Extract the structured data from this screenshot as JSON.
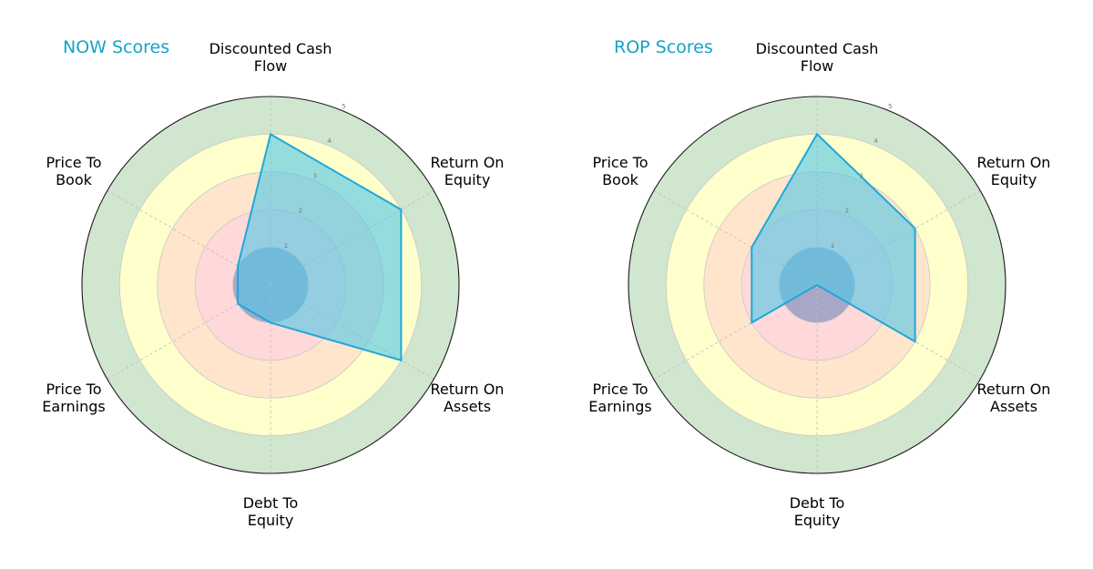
{
  "chart_data": [
    {
      "type": "radar",
      "title": "NOW Scores",
      "axes": [
        "Discounted Cash\nFlow",
        "Return On\nEquity",
        "Return On\nAssets",
        "Debt To\nEquity",
        "Price To\nEarnings",
        "Price To\nBook"
      ],
      "rlim": [
        0,
        5
      ],
      "rticks": [
        "1",
        "2",
        "3",
        "4",
        "5"
      ],
      "bands": [
        {
          "from": 0,
          "to": 1,
          "color": "#a7a7c7"
        },
        {
          "from": 1,
          "to": 2,
          "color": "#ffd9d9"
        },
        {
          "from": 2,
          "to": 3,
          "color": "#ffe5cc"
        },
        {
          "from": 3,
          "to": 4,
          "color": "#ffffcc"
        },
        {
          "from": 4,
          "to": 5,
          "color": "#d0e6cf"
        }
      ],
      "series": [
        {
          "values": [
            4,
            4,
            4,
            1,
            1,
            1
          ],
          "color": "#1ea7dc",
          "fill": "#4fc6e6"
        }
      ]
    },
    {
      "type": "radar",
      "title": "ROP Scores",
      "axes": [
        "Discounted Cash\nFlow",
        "Return On\nEquity",
        "Return On\nAssets",
        "Debt To\nEquity",
        "Price To\nEarnings",
        "Price To\nBook"
      ],
      "rlim": [
        0,
        5
      ],
      "rticks": [
        "1",
        "2",
        "3",
        "4",
        "5"
      ],
      "bands": [
        {
          "from": 0,
          "to": 1,
          "color": "#a7a7c7"
        },
        {
          "from": 1,
          "to": 2,
          "color": "#ffd9d9"
        },
        {
          "from": 2,
          "to": 3,
          "color": "#ffe5cc"
        },
        {
          "from": 3,
          "to": 4,
          "color": "#ffffcc"
        },
        {
          "from": 4,
          "to": 5,
          "color": "#d0e6cf"
        }
      ],
      "series": [
        {
          "values": [
            4,
            3,
            3,
            0,
            2,
            2
          ],
          "color": "#1ea7dc",
          "fill": "#4fc6e6"
        }
      ]
    }
  ]
}
